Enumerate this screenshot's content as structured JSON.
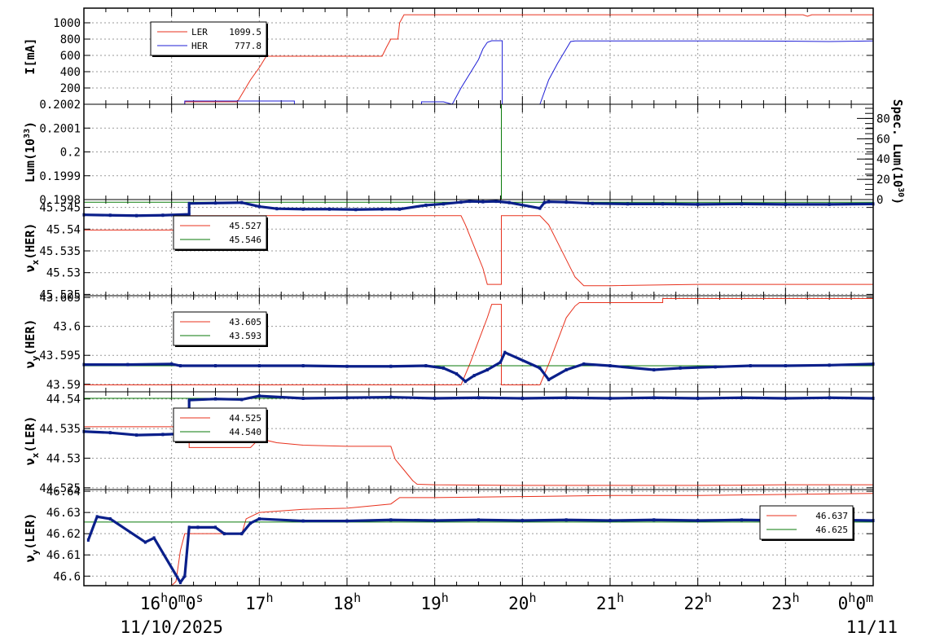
{
  "chart_data": [
    {
      "type": "line",
      "ylabel": "I[mA]",
      "ylim": [
        0,
        1180
      ],
      "yticks": [
        0,
        200,
        400,
        600,
        800,
        1000
      ],
      "ytick_labels": [
        "200",
        "400",
        "600",
        "800",
        "1000"
      ],
      "legend": [
        {
          "name": "LER",
          "value": "1099.5",
          "color": "#e8321e"
        },
        {
          "name": "HER",
          "value": "777.8",
          "color": "#1f1fd6"
        }
      ],
      "series": [
        {
          "name": "LER",
          "color": "#e8321e",
          "dots": false,
          "x": [
            15.0,
            16.15,
            16.15,
            16.75,
            16.8,
            16.9,
            17.0,
            17.08,
            17.5,
            18.0,
            18.3,
            18.4,
            18.45,
            18.5,
            18.58,
            18.6,
            18.65,
            19.0,
            20.0,
            21.0,
            22.0,
            23.0,
            23.2,
            23.25,
            23.3,
            24.0
          ],
          "y": [
            0,
            0,
            30,
            30,
            120,
            300,
            450,
            590,
            590,
            590,
            590,
            590,
            700,
            800,
            800,
            1000,
            1099,
            1099,
            1099,
            1099,
            1099,
            1099,
            1099,
            1080,
            1099,
            1099
          ]
        },
        {
          "name": "HER",
          "color": "#1f1fd6",
          "dots": false,
          "x": [
            15.0,
            16.15,
            16.15,
            17.4,
            17.4,
            18.85,
            18.85,
            19.1,
            19.2,
            19.3,
            19.5,
            19.55,
            19.6,
            19.65,
            19.7,
            19.77,
            19.77,
            20.2,
            20.3,
            20.4,
            20.5,
            20.55,
            20.6,
            21.0,
            22.0,
            23.0,
            23.5,
            24.0
          ],
          "y": [
            0,
            0,
            40,
            40,
            0,
            0,
            30,
            30,
            0,
            200,
            550,
            680,
            760,
            780,
            780,
            780,
            0,
            0,
            300,
            500,
            680,
            770,
            778,
            778,
            778,
            775,
            770,
            778
          ]
        }
      ]
    },
    {
      "type": "line",
      "ylabel": "Lum(10^33)",
      "ylim": [
        0.1998,
        0.2002
      ],
      "yticks": [
        0.1998,
        0.1999,
        0.2,
        0.2001,
        0.2002
      ],
      "ytick_labels": [
        "0.1998",
        "0.1999",
        "0.2",
        "0.2001",
        "0.2002"
      ],
      "y2label": "Spec. Lum(10^30)",
      "y2lim": [
        0,
        94
      ],
      "y2ticks": [
        0,
        20,
        40,
        60,
        80
      ],
      "y2tick_labels": [
        "0",
        "20",
        "40",
        "60",
        "80"
      ],
      "series": [
        {
          "name": "",
          "color": "#0a7a0a",
          "dots": false,
          "x": [
            19.76,
            19.76
          ],
          "y": [
            0.1998,
            0.2002
          ]
        }
      ]
    },
    {
      "type": "scatter",
      "ylabel": "νx(HER)",
      "ylim": [
        45.5247,
        45.5468
      ],
      "yticks": [
        45.525,
        45.53,
        45.535,
        45.54,
        45.545
      ],
      "ytick_labels": [
        "45.525",
        "45.53",
        "45.535",
        "45.54",
        "45.545"
      ],
      "legend": [
        {
          "name": "",
          "value": "45.527",
          "color": "#e8321e"
        },
        {
          "name": "",
          "value": "45.546",
          "color": "#0a7a0a"
        }
      ],
      "series": [
        {
          "name": "",
          "color": "#e8321e",
          "dots": false,
          "x": [
            15.0,
            16.2,
            16.2,
            19.3,
            19.35,
            19.45,
            19.55,
            19.6,
            19.76,
            19.76,
            20.2,
            20.3,
            20.4,
            20.5,
            20.6,
            20.7,
            21.0,
            22.0,
            23.0,
            24.0
          ],
          "y": [
            45.5398,
            45.5398,
            45.5431,
            45.5431,
            45.541,
            45.536,
            45.531,
            45.5273,
            45.5273,
            45.5431,
            45.5431,
            45.541,
            45.537,
            45.533,
            45.529,
            45.527,
            45.527,
            45.5273,
            45.5273,
            45.5273
          ]
        },
        {
          "name": "",
          "color": "#0a7a0a",
          "dots": false,
          "x": [
            15.0,
            24.0
          ],
          "y": [
            45.5462,
            45.5462
          ]
        },
        {
          "name": "",
          "color": "#0a1f8a",
          "dots": true,
          "x": [
            15.0,
            15.3,
            15.6,
            15.9,
            16.2,
            16.2,
            16.5,
            16.8,
            17.0,
            17.2,
            17.5,
            17.8,
            18.1,
            18.4,
            18.6,
            18.9,
            19.1,
            19.3,
            19.4,
            19.55,
            19.7,
            19.85,
            20.2,
            20.25,
            20.3,
            20.5,
            20.8,
            21.2,
            21.6,
            22.0,
            22.5,
            23.0,
            23.5,
            24.0
          ],
          "y": [
            45.5433,
            45.5432,
            45.5431,
            45.5432,
            45.5434,
            45.5459,
            45.546,
            45.5461,
            45.5452,
            45.5447,
            45.5446,
            45.5446,
            45.5445,
            45.5446,
            45.5446,
            45.5455,
            45.5458,
            45.5462,
            45.5464,
            45.5463,
            45.5464,
            45.5461,
            45.5448,
            45.5461,
            45.5463,
            45.5462,
            45.5459,
            45.5458,
            45.5458,
            45.5457,
            45.5458,
            45.5457,
            45.5457,
            45.5458
          ]
        }
      ]
    },
    {
      "type": "scatter",
      "ylabel": "νy(HER)",
      "ylim": [
        43.5887,
        43.6053
      ],
      "yticks": [
        43.59,
        43.595,
        43.6,
        43.605
      ],
      "ytick_labels": [
        "43.59",
        "43.595",
        "43.6",
        "43.605"
      ],
      "legend": [
        {
          "name": "",
          "value": "43.605",
          "color": "#e8321e"
        },
        {
          "name": "",
          "value": "43.593",
          "color": "#0a7a0a"
        }
      ],
      "series": [
        {
          "name": "",
          "color": "#e8321e",
          "dots": false,
          "x": [
            15.0,
            19.3,
            19.4,
            19.5,
            19.6,
            19.65,
            19.76,
            19.76,
            20.2,
            20.3,
            20.4,
            20.5,
            20.6,
            20.65,
            21.0,
            21.6,
            21.6,
            22.0,
            23.0,
            24.0
          ],
          "y": [
            43.5899,
            43.5899,
            43.5935,
            43.5975,
            43.6015,
            43.6038,
            43.6038,
            43.5899,
            43.5899,
            43.5935,
            43.5975,
            43.6015,
            43.6035,
            43.6041,
            43.6041,
            43.6041,
            43.6048,
            43.6048,
            43.6048,
            43.6048
          ]
        },
        {
          "name": "",
          "color": "#0a7a0a",
          "dots": false,
          "x": [
            15.0,
            24.0
          ],
          "y": [
            43.5932,
            43.5932
          ]
        },
        {
          "name": "",
          "color": "#0a1f8a",
          "dots": true,
          "x": [
            15.0,
            15.5,
            16.0,
            16.1,
            16.5,
            17.0,
            17.5,
            18.0,
            18.5,
            18.9,
            19.1,
            19.25,
            19.35,
            19.45,
            19.6,
            19.75,
            19.8,
            20.2,
            20.3,
            20.5,
            20.7,
            21.0,
            21.5,
            21.8,
            22.2,
            22.6,
            23.0,
            23.5,
            24.0
          ],
          "y": [
            43.5934,
            43.5934,
            43.5935,
            43.5932,
            43.5932,
            43.5932,
            43.5932,
            43.5931,
            43.5931,
            43.5932,
            43.5928,
            43.5918,
            43.5905,
            43.5915,
            43.5925,
            43.5938,
            43.5955,
            43.5928,
            43.5908,
            43.5925,
            43.5935,
            43.5932,
            43.5925,
            43.5928,
            43.593,
            43.5932,
            43.5932,
            43.5933,
            43.5935
          ]
        }
      ]
    },
    {
      "type": "scatter",
      "ylabel": "νx(LER)",
      "ylim": [
        44.5247,
        44.5412
      ],
      "yticks": [
        44.525,
        44.53,
        44.535,
        44.54
      ],
      "ytick_labels": [
        "44.525",
        "44.53",
        "44.535",
        "44.54"
      ],
      "legend": [
        {
          "name": "",
          "value": "44.525",
          "color": "#e8321e"
        },
        {
          "name": "",
          "value": "44.540",
          "color": "#0a7a0a"
        }
      ],
      "series": [
        {
          "name": "",
          "color": "#e8321e",
          "dots": false,
          "x": [
            15.0,
            16.2,
            16.2,
            16.9,
            17.0,
            17.2,
            17.5,
            18.0,
            18.5,
            18.55,
            18.65,
            18.75,
            18.8,
            19.0,
            20.0,
            21.0,
            22.0,
            23.0,
            24.0
          ],
          "y": [
            44.5353,
            44.5353,
            44.5318,
            44.5318,
            44.5333,
            44.5326,
            44.5322,
            44.532,
            44.532,
            44.5298,
            44.528,
            44.5262,
            44.5256,
            44.5255,
            44.5254,
            44.5254,
            44.5254,
            44.5255,
            44.5255
          ]
        },
        {
          "name": "",
          "color": "#0a7a0a",
          "dots": false,
          "x": [
            15.0,
            24.0
          ],
          "y": [
            44.5401,
            44.5401
          ]
        },
        {
          "name": "",
          "color": "#0a1f8a",
          "dots": true,
          "x": [
            15.0,
            15.3,
            15.6,
            15.9,
            16.1,
            16.2,
            16.2,
            16.5,
            16.8,
            17.0,
            17.5,
            18.0,
            18.5,
            19.0,
            19.5,
            20.0,
            20.5,
            21.0,
            21.5,
            22.0,
            22.5,
            23.0,
            23.5,
            24.0
          ],
          "y": [
            44.5345,
            44.5343,
            44.5339,
            44.534,
            44.5341,
            44.5342,
            44.5398,
            44.54,
            44.5399,
            44.5405,
            44.5401,
            44.5402,
            44.5403,
            44.5401,
            44.5402,
            44.5401,
            44.5402,
            44.5401,
            44.5402,
            44.5401,
            44.5402,
            44.5401,
            44.5402,
            44.5401
          ]
        }
      ]
    },
    {
      "type": "scatter",
      "ylabel": "νy(LER)",
      "ylim": [
        46.5955,
        46.6408
      ],
      "yticks": [
        46.6,
        46.61,
        46.62,
        46.63,
        46.64
      ],
      "ytick_labels": [
        "46.6",
        "46.61",
        "46.62",
        "46.63",
        "46.64"
      ],
      "legend": [
        {
          "name": "",
          "value": "46.637",
          "color": "#e8321e"
        },
        {
          "name": "",
          "value": "46.625",
          "color": "#0a7a0a"
        }
      ],
      "series": [
        {
          "name": "",
          "color": "#e8321e",
          "dots": false,
          "x": [
            15.0,
            16.0,
            16.05,
            16.1,
            16.15,
            16.2,
            16.5,
            16.8,
            16.85,
            16.95,
            17.0,
            17.5,
            18.0,
            18.5,
            18.6,
            19.0,
            20.0,
            21.0,
            22.0,
            23.0,
            24.0
          ],
          "y": [
            46.5955,
            46.5955,
            46.5975,
            46.612,
            46.62,
            46.62,
            46.62,
            46.62,
            46.627,
            46.629,
            46.63,
            46.6315,
            46.632,
            46.634,
            46.637,
            46.637,
            46.6375,
            46.638,
            46.638,
            46.6385,
            46.639
          ]
        },
        {
          "name": "",
          "color": "#0a7a0a",
          "dots": false,
          "x": [
            15.0,
            24.0
          ],
          "y": [
            46.6255,
            46.6255
          ]
        },
        {
          "name": "",
          "color": "#0a1f8a",
          "dots": true,
          "x": [
            15.05,
            15.15,
            15.3,
            15.7,
            15.8,
            16.1,
            16.15,
            16.2,
            16.3,
            16.5,
            16.6,
            16.8,
            16.9,
            17.0,
            17.5,
            18.0,
            18.5,
            19.0,
            19.5,
            20.0,
            20.5,
            21.0,
            21.5,
            22.0,
            22.5,
            23.0,
            23.5,
            24.0
          ],
          "y": [
            46.617,
            46.628,
            46.627,
            46.616,
            46.618,
            46.597,
            46.6,
            46.623,
            46.623,
            46.623,
            46.62,
            46.62,
            46.625,
            46.627,
            46.626,
            46.626,
            46.6265,
            46.6262,
            46.6265,
            46.6262,
            46.6265,
            46.6262,
            46.6265,
            46.6262,
            46.6265,
            46.6262,
            46.6265,
            46.6262
          ]
        }
      ]
    }
  ],
  "x_axis": {
    "range": [
      "2025-11-10 15:00",
      "2025-11-11 00:00"
    ],
    "tick_hours": [
      16,
      17,
      18,
      19,
      20,
      21,
      22,
      23,
      24
    ],
    "tick_labels": [
      {
        "base": "16",
        "parts": [
          {
            "t": "16",
            "sup": false
          },
          {
            "t": "h",
            "sup": true
          },
          {
            "t": "0",
            "sup": false
          },
          {
            "t": "m",
            "sup": true
          },
          {
            "t": "0",
            "sup": false
          },
          {
            "t": "s",
            "sup": true
          }
        ]
      },
      {
        "base": "17",
        "parts": [
          {
            "t": "17",
            "sup": false
          },
          {
            "t": "h",
            "sup": true
          }
        ]
      },
      {
        "base": "18",
        "parts": [
          {
            "t": "18",
            "sup": false
          },
          {
            "t": "h",
            "sup": true
          }
        ]
      },
      {
        "base": "19",
        "parts": [
          {
            "t": "19",
            "sup": false
          },
          {
            "t": "h",
            "sup": true
          }
        ]
      },
      {
        "base": "20",
        "parts": [
          {
            "t": "20",
            "sup": false
          },
          {
            "t": "h",
            "sup": true
          }
        ]
      },
      {
        "base": "21",
        "parts": [
          {
            "t": "21",
            "sup": false
          },
          {
            "t": "h",
            "sup": true
          }
        ]
      },
      {
        "base": "22",
        "parts": [
          {
            "t": "22",
            "sup": false
          },
          {
            "t": "h",
            "sup": true
          }
        ]
      },
      {
        "base": "23",
        "parts": [
          {
            "t": "23",
            "sup": false
          },
          {
            "t": "h",
            "sup": true
          }
        ]
      },
      {
        "base": "0",
        "parts": [
          {
            "t": "0",
            "sup": false
          },
          {
            "t": "h",
            "sup": true
          },
          {
            "t": "0",
            "sup": false
          },
          {
            "t": "m",
            "sup": true
          }
        ]
      }
    ],
    "date_left": "11/10/2025",
    "date_right": "11/11"
  },
  "grid": true
}
